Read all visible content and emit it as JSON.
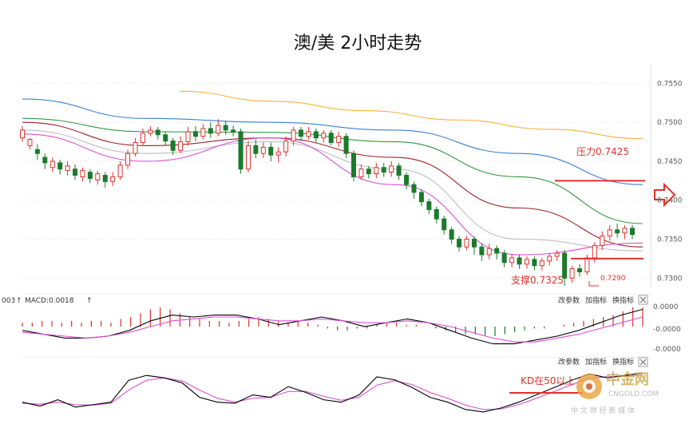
{
  "chart_data": {
    "type": "line",
    "title": "澳/美 2小时走势",
    "y_ticks": [
      "0.7550",
      "0.7500",
      "0.7450",
      "0.7400",
      "0.7350",
      "0.7300"
    ],
    "ylim": [
      0.7288,
      0.7575
    ],
    "candles": [
      [
        0.748,
        0.749,
        0.7475,
        0.7495
      ],
      [
        0.747,
        0.7478,
        0.7465,
        0.748
      ],
      [
        0.7465,
        0.746,
        0.7452,
        0.7472
      ],
      [
        0.7455,
        0.7448,
        0.744,
        0.746
      ],
      [
        0.7442,
        0.745,
        0.7436,
        0.7455
      ],
      [
        0.7448,
        0.744,
        0.7433,
        0.7452
      ],
      [
        0.7438,
        0.7444,
        0.7432,
        0.745
      ],
      [
        0.744,
        0.7432,
        0.7426,
        0.7446
      ],
      [
        0.743,
        0.7438,
        0.7424,
        0.7442
      ],
      [
        0.7436,
        0.7428,
        0.7422,
        0.744
      ],
      [
        0.7426,
        0.7434,
        0.742,
        0.7438
      ],
      [
        0.7432,
        0.7424,
        0.7416,
        0.7436
      ],
      [
        0.7424,
        0.743,
        0.7418,
        0.7436
      ],
      [
        0.743,
        0.7445,
        0.7426,
        0.745
      ],
      [
        0.7445,
        0.746,
        0.744,
        0.7465
      ],
      [
        0.746,
        0.7474,
        0.7456,
        0.748
      ],
      [
        0.7474,
        0.7486,
        0.747,
        0.7492
      ],
      [
        0.7486,
        0.749,
        0.7482,
        0.7495
      ],
      [
        0.749,
        0.7484,
        0.7478,
        0.7494
      ],
      [
        0.7484,
        0.7476,
        0.747,
        0.7488
      ],
      [
        0.7476,
        0.7464,
        0.7458,
        0.748
      ],
      [
        0.7464,
        0.7475,
        0.746,
        0.7482
      ],
      [
        0.7475,
        0.7488,
        0.747,
        0.7494
      ],
      [
        0.7488,
        0.7482,
        0.7476,
        0.7495
      ],
      [
        0.7482,
        0.7492,
        0.7478,
        0.7498
      ],
      [
        0.7492,
        0.7486,
        0.748,
        0.75
      ],
      [
        0.7486,
        0.7496,
        0.7482,
        0.7504
      ],
      [
        0.7496,
        0.749,
        0.7484,
        0.7502
      ],
      [
        0.749,
        0.7488,
        0.7482,
        0.7496
      ],
      [
        0.7488,
        0.744,
        0.7434,
        0.7492
      ],
      [
        0.744,
        0.747,
        0.7436,
        0.7476
      ],
      [
        0.747,
        0.746,
        0.7454,
        0.7478
      ],
      [
        0.746,
        0.7468,
        0.7454,
        0.7474
      ],
      [
        0.7468,
        0.7458,
        0.745,
        0.7474
      ],
      [
        0.7458,
        0.7462,
        0.7448,
        0.7468
      ],
      [
        0.7462,
        0.7476,
        0.7456,
        0.7482
      ],
      [
        0.7476,
        0.749,
        0.747,
        0.7494
      ],
      [
        0.749,
        0.7482,
        0.7476,
        0.7494
      ],
      [
        0.7482,
        0.7488,
        0.7478,
        0.7494
      ],
      [
        0.7488,
        0.748,
        0.7474,
        0.7492
      ],
      [
        0.748,
        0.7486,
        0.7474,
        0.749
      ],
      [
        0.7486,
        0.7474,
        0.747,
        0.749
      ],
      [
        0.7474,
        0.7482,
        0.7468,
        0.7488
      ],
      [
        0.7482,
        0.746,
        0.7454,
        0.7486
      ],
      [
        0.746,
        0.743,
        0.7424,
        0.7464
      ],
      [
        0.743,
        0.744,
        0.7426,
        0.7446
      ],
      [
        0.744,
        0.7434,
        0.7428,
        0.7444
      ],
      [
        0.7434,
        0.7442,
        0.7428,
        0.7448
      ],
      [
        0.7442,
        0.7436,
        0.743,
        0.7448
      ],
      [
        0.7436,
        0.7444,
        0.743,
        0.745
      ],
      [
        0.7444,
        0.7432,
        0.7426,
        0.7448
      ],
      [
        0.7432,
        0.742,
        0.7414,
        0.7436
      ],
      [
        0.742,
        0.741,
        0.7402,
        0.7424
      ],
      [
        0.741,
        0.7398,
        0.7392,
        0.7414
      ],
      [
        0.7398,
        0.7388,
        0.7382,
        0.7402
      ],
      [
        0.7388,
        0.7376,
        0.737,
        0.7392
      ],
      [
        0.7376,
        0.7362,
        0.7356,
        0.738
      ],
      [
        0.7362,
        0.735,
        0.7344,
        0.7366
      ],
      [
        0.735,
        0.734,
        0.7334,
        0.7354
      ],
      [
        0.734,
        0.735,
        0.7336,
        0.7354
      ],
      [
        0.735,
        0.734,
        0.733,
        0.7354
      ],
      [
        0.734,
        0.733,
        0.7322,
        0.7344
      ],
      [
        0.733,
        0.7338,
        0.7324,
        0.7344
      ],
      [
        0.7338,
        0.7332,
        0.7324,
        0.7342
      ],
      [
        0.7332,
        0.732,
        0.7314,
        0.7336
      ],
      [
        0.732,
        0.7326,
        0.7314,
        0.733
      ],
      [
        0.7326,
        0.7318,
        0.7312,
        0.733
      ],
      [
        0.7318,
        0.7324,
        0.7312,
        0.7328
      ],
      [
        0.7324,
        0.7316,
        0.731,
        0.7328
      ],
      [
        0.7316,
        0.7322,
        0.731,
        0.7326
      ],
      [
        0.7322,
        0.7328,
        0.7316,
        0.7332
      ],
      [
        0.7328,
        0.7332,
        0.7322,
        0.7336
      ],
      [
        0.7332,
        0.73,
        0.729,
        0.7336
      ],
      [
        0.73,
        0.7312,
        0.7294,
        0.7316
      ],
      [
        0.7312,
        0.7308,
        0.7302,
        0.7318
      ],
      [
        0.7308,
        0.7326,
        0.7304,
        0.733
      ],
      [
        0.7326,
        0.7342,
        0.732,
        0.7346
      ],
      [
        0.7342,
        0.7354,
        0.7336,
        0.736
      ],
      [
        0.7354,
        0.7362,
        0.7348,
        0.7368
      ],
      [
        0.7362,
        0.7358,
        0.7352,
        0.737
      ],
      [
        0.7358,
        0.7364,
        0.735,
        0.7368
      ],
      [
        0.7364,
        0.7356,
        0.735,
        0.7368
      ]
    ],
    "moving_averages": [
      {
        "color": "#f4b23e",
        "values": [
          0.754,
          0.7527,
          0.7515,
          0.7503,
          0.7491,
          0.7479
        ]
      },
      {
        "color": "#3a7fd5",
        "values": [
          0.753,
          0.7505,
          0.75,
          0.749,
          0.746,
          0.742
        ]
      },
      {
        "color": "#2e9a3e",
        "values": [
          0.7505,
          0.7488,
          0.7487,
          0.7475,
          0.743,
          0.737
        ]
      },
      {
        "color": "#9b2226",
        "values": [
          0.75,
          0.747,
          0.748,
          0.7455,
          0.739,
          0.734
        ]
      },
      {
        "color": "#bdbdbd",
        "values": [
          0.749,
          0.746,
          0.7475,
          0.744,
          0.735,
          0.7335
        ]
      },
      {
        "color": "#d94fd5",
        "values": [
          0.7485,
          0.745,
          0.748,
          0.742,
          0.733,
          0.7345
        ]
      }
    ],
    "levels": [
      {
        "label": "压力0.7425",
        "value": 0.7425
      },
      {
        "label": "支撑0.7325",
        "value": 0.7325
      },
      {
        "label": "0.7290",
        "value": 0.729
      }
    ],
    "macd": {
      "label": "MACD:0.0018",
      "prefix": "003",
      "y_ticks": [
        "0.0000",
        "-0.0000",
        "-0.0000"
      ],
      "histogram": [
        0.2,
        0.2,
        0.3,
        0.3,
        0.2,
        0.3,
        0.2,
        0.3,
        0.3,
        0.2,
        0.4,
        0.5,
        0.7,
        0.9,
        1.0,
        0.9,
        0.7,
        0.5,
        0.4,
        0.3,
        0.3,
        0.2,
        0.3,
        0.4,
        0.5,
        0.4,
        0.3,
        0.2,
        0.3,
        0.2,
        0.1,
        -0.1,
        -0.2,
        -0.2,
        -0.1,
        -0.1,
        0.1,
        0.2,
        0.2,
        0.1,
        0.1,
        0.0,
        -0.1,
        -0.2,
        -0.3,
        -0.4,
        -0.4,
        -0.5,
        -0.5,
        -0.4,
        -0.3,
        -0.2,
        -0.1,
        -0.1,
        0.0,
        0.1,
        0.2,
        0.3,
        0.4,
        0.5,
        0.6,
        0.8,
        1.0,
        1.0
      ],
      "dif": [
        -0.2,
        -0.4,
        -0.6,
        -0.6,
        -0.5,
        -0.2,
        0.3,
        0.6,
        0.5,
        0.6,
        0.6,
        0.4,
        0.1,
        0.3,
        0.5,
        0.3,
        0.0,
        0.2,
        0.4,
        0.2,
        -0.2,
        -0.6,
        -0.9,
        -0.9,
        -0.7,
        -0.5,
        -0.2,
        0.2,
        0.6,
        0.9
      ],
      "dea": [
        -0.3,
        -0.4,
        -0.5,
        -0.6,
        -0.5,
        -0.3,
        0.0,
        0.3,
        0.4,
        0.5,
        0.5,
        0.4,
        0.3,
        0.3,
        0.4,
        0.3,
        0.2,
        0.2,
        0.3,
        0.2,
        0.0,
        -0.3,
        -0.6,
        -0.8,
        -0.8,
        -0.6,
        -0.4,
        -0.1,
        0.2,
        0.5
      ]
    },
    "kd": {
      "k": [
        30,
        22,
        35,
        20,
        25,
        30,
        75,
        85,
        80,
        70,
        40,
        30,
        28,
        45,
        40,
        62,
        50,
        35,
        30,
        45,
        82,
        76,
        60,
        40,
        30,
        15,
        10,
        18,
        30,
        45,
        60,
        75,
        88,
        80,
        85,
        90
      ],
      "d": [
        28,
        26,
        30,
        25,
        24,
        28,
        55,
        75,
        80,
        74,
        55,
        38,
        30,
        38,
        40,
        52,
        52,
        42,
        34,
        40,
        65,
        74,
        66,
        50,
        38,
        24,
        15,
        16,
        25,
        38,
        52,
        66,
        80,
        82,
        84,
        86
      ],
      "annotation": "KD在50以上"
    },
    "labels": [
      "改参数",
      "加指标",
      "换指标"
    ],
    "close_icon": "close-icon",
    "arrow_icon": "arrow-right-icon",
    "watermark": {
      "brand": "中金网",
      "site": "CNGOLD.COM",
      "tagline": "中 文 财 经 新 媒 体"
    },
    "colors": {
      "up": "#e0312b",
      "down": "#1b7a2b",
      "dif": "#000000",
      "dea": "#d94fd5",
      "kd_k": "#000000",
      "kd_d": "#d94fd5",
      "level": "#e0312b"
    }
  }
}
